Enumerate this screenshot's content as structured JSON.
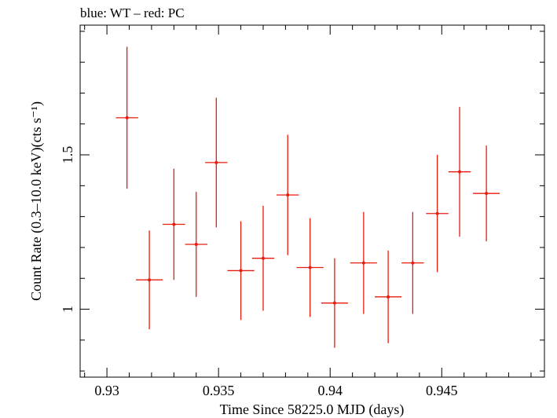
{
  "chart_data": {
    "type": "scatter",
    "title": "blue: WT – red: PC",
    "xlabel": "Time Since 58225.0 MJD (days)",
    "ylabel": "Count Rate (0.3–10.0 keV)(cts s⁻¹)",
    "xlim": [
      0.9288,
      0.9496
    ],
    "ylim": [
      0.78,
      1.92
    ],
    "x_ticks": [
      0.93,
      0.935,
      0.94,
      0.945
    ],
    "x_tick_labels": [
      "0.93",
      "0.935",
      "0.94",
      "0.945"
    ],
    "y_ticks": [
      1,
      1.5
    ],
    "y_tick_labels": [
      "1",
      "1.5"
    ],
    "grid": false,
    "series": [
      {
        "color": "#e81c0c",
        "x": [
          0.9309,
          0.9319,
          0.933,
          0.934,
          0.9349,
          0.936,
          0.937,
          0.9381,
          0.9391,
          0.9402,
          0.9415,
          0.9426,
          0.9437,
          0.9448,
          0.9458,
          0.947
        ],
        "xerr": [
          0.0005,
          0.0006,
          0.0005,
          0.0005,
          0.0005,
          0.0006,
          0.0005,
          0.0005,
          0.0006,
          0.0006,
          0.0006,
          0.0006,
          0.0005,
          0.0005,
          0.0005,
          0.0006
        ],
        "y": [
          1.62,
          1.095,
          1.275,
          1.21,
          1.475,
          1.125,
          1.165,
          1.37,
          1.135,
          1.02,
          1.15,
          1.04,
          1.15,
          1.31,
          1.445,
          1.375
        ],
        "yerr": [
          0.23,
          0.16,
          0.18,
          0.17,
          0.21,
          0.16,
          0.17,
          0.195,
          0.16,
          0.145,
          0.165,
          0.15,
          0.165,
          0.19,
          0.21,
          0.155
        ]
      }
    ]
  }
}
